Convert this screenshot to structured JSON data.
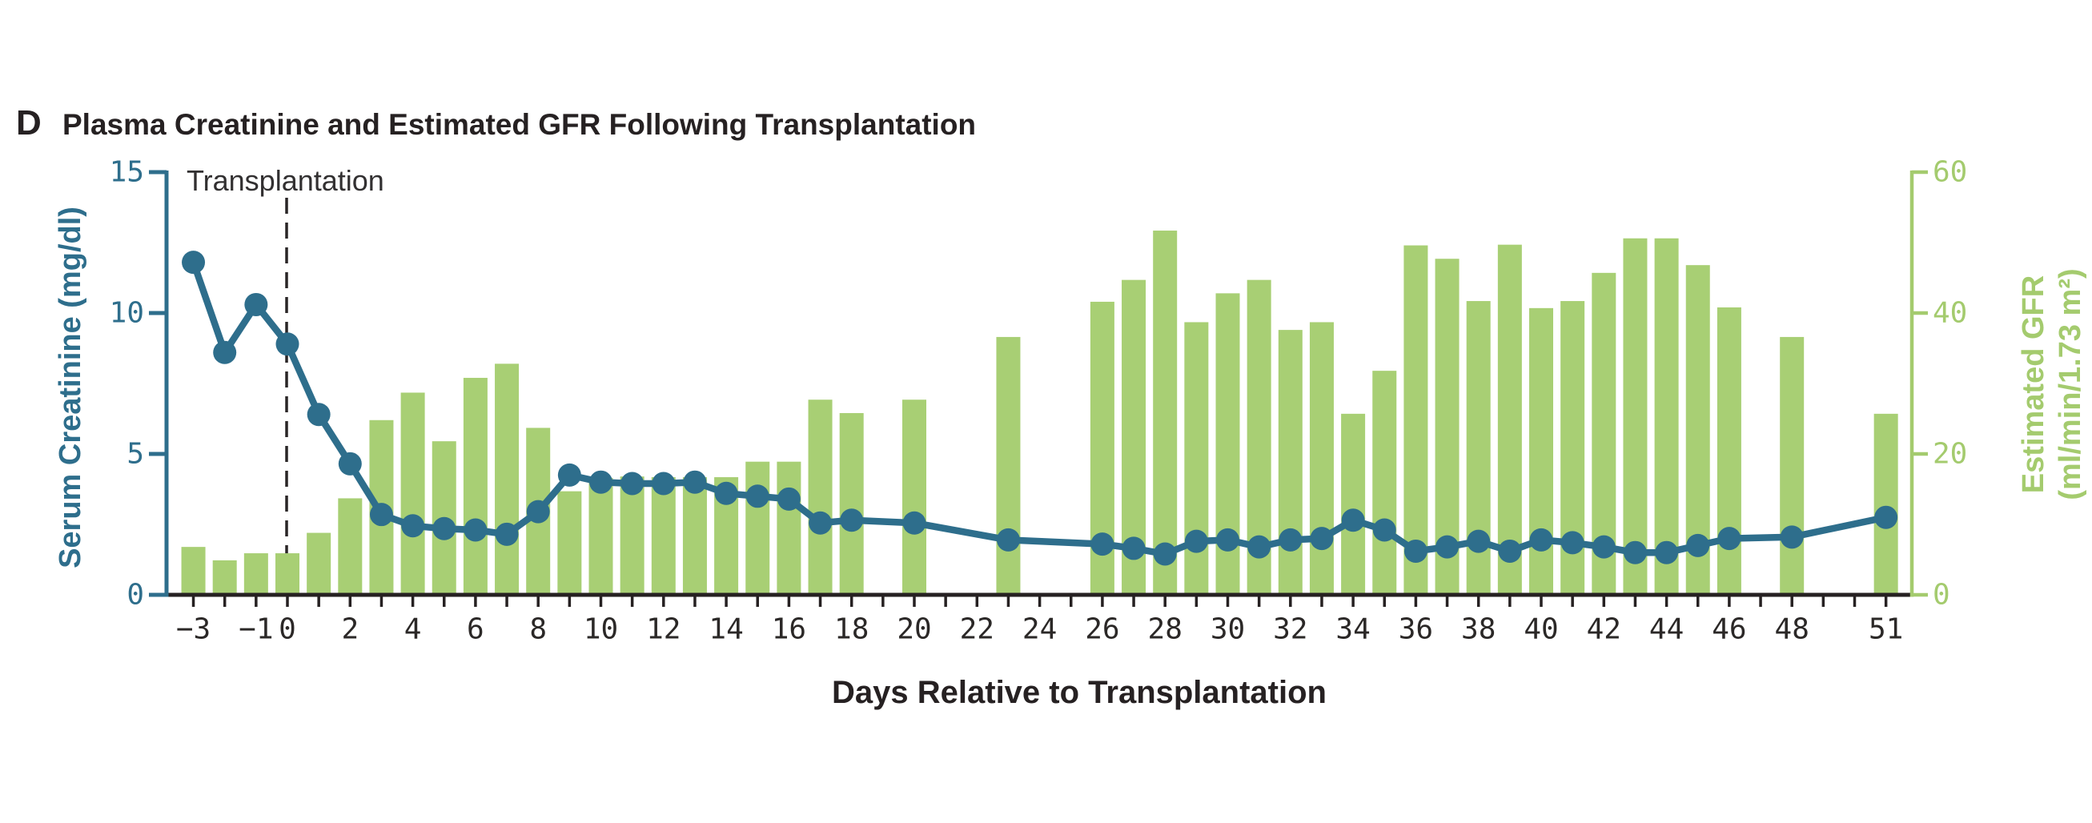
{
  "panel": {
    "label": "D",
    "title": "Plasma Creatinine and Estimated GFR Following Transplantation"
  },
  "annotation": {
    "transplantation_label": "Transplantation"
  },
  "chart_data": {
    "type": "combo-bar-line",
    "title": "Plasma Creatinine and Estimated GFR Following Transplantation",
    "x_axis": {
      "title": "Days Relative to Transplantation",
      "tick_label_values": [
        -3,
        -1,
        0,
        2,
        4,
        6,
        8,
        10,
        12,
        14,
        16,
        18,
        20,
        22,
        24,
        26,
        28,
        30,
        32,
        34,
        36,
        38,
        40,
        42,
        44,
        46,
        48,
        51
      ],
      "tick_labels": [
        "−3",
        "−1",
        "0",
        "2",
        "4",
        "6",
        "8",
        "10",
        "12",
        "14",
        "16",
        "18",
        "20",
        "22",
        "24",
        "26",
        "28",
        "30",
        "32",
        "34",
        "36",
        "38",
        "40",
        "42",
        "44",
        "46",
        "48",
        "51"
      ],
      "minor_tick_every_day": true,
      "range": [
        -3,
        51
      ]
    },
    "left_axis": {
      "title": "Serum Creatinine (mg/dl)",
      "ticks": [
        0,
        5,
        10,
        15
      ],
      "range": [
        0,
        15
      ],
      "color": "#2e6e8c"
    },
    "right_axis": {
      "title_line1": "Estimated GFR",
      "title_line2": "(ml/min/1.73 m²)",
      "ticks": [
        0,
        20,
        40,
        60
      ],
      "range": [
        0,
        60
      ],
      "color": "#a4cb6e"
    },
    "event_line": {
      "day": 0,
      "label": "Transplantation",
      "style": "dashed"
    },
    "series": [
      {
        "name": "Estimated GFR",
        "type": "bar",
        "axis": "right",
        "color": "#a8cf74",
        "points": [
          [
            -3,
            6.8
          ],
          [
            -2,
            4.9
          ],
          [
            -1,
            5.9
          ],
          [
            0,
            5.9
          ],
          [
            1,
            8.8
          ],
          [
            2,
            13.7
          ],
          [
            3,
            24.8
          ],
          [
            4,
            28.7
          ],
          [
            5,
            21.8
          ],
          [
            6,
            30.8
          ],
          [
            7,
            32.8
          ],
          [
            8,
            23.7
          ],
          [
            9,
            14.7
          ],
          [
            10,
            16.6
          ],
          [
            11,
            16.8
          ],
          [
            12,
            16.7
          ],
          [
            13,
            16.7
          ],
          [
            14,
            16.7
          ],
          [
            15,
            18.9
          ],
          [
            16,
            18.9
          ],
          [
            17,
            27.7
          ],
          [
            18,
            25.8
          ],
          [
            20,
            27.7
          ],
          [
            23,
            36.6
          ],
          [
            26,
            41.6
          ],
          [
            27,
            44.7
          ],
          [
            28,
            51.7
          ],
          [
            29,
            38.7
          ],
          [
            30,
            42.8
          ],
          [
            31,
            44.7
          ],
          [
            32,
            37.6
          ],
          [
            33,
            38.7
          ],
          [
            34,
            25.7
          ],
          [
            35,
            31.8
          ],
          [
            36,
            49.6
          ],
          [
            37,
            47.7
          ],
          [
            38,
            41.7
          ],
          [
            39,
            49.7
          ],
          [
            40,
            40.7
          ],
          [
            41,
            41.7
          ],
          [
            42,
            45.7
          ],
          [
            43,
            50.6
          ],
          [
            44,
            50.6
          ],
          [
            45,
            46.8
          ],
          [
            46,
            40.8
          ],
          [
            48,
            36.6
          ],
          [
            51,
            25.7
          ]
        ]
      },
      {
        "name": "Serum Creatinine",
        "type": "line",
        "axis": "left",
        "color": "#2e6e8c",
        "points": [
          [
            -3,
            11.8
          ],
          [
            -2,
            8.6
          ],
          [
            -1,
            10.3
          ],
          [
            0,
            8.9
          ],
          [
            1,
            6.4
          ],
          [
            2,
            4.65
          ],
          [
            3,
            2.85
          ],
          [
            4,
            2.45
          ],
          [
            5,
            2.35
          ],
          [
            6,
            2.3
          ],
          [
            7,
            2.15
          ],
          [
            8,
            2.95
          ],
          [
            9,
            4.25
          ],
          [
            10,
            4.0
          ],
          [
            11,
            3.95
          ],
          [
            12,
            3.95
          ],
          [
            13,
            4.0
          ],
          [
            14,
            3.6
          ],
          [
            15,
            3.5
          ],
          [
            16,
            3.4
          ],
          [
            17,
            2.55
          ],
          [
            18,
            2.65
          ],
          [
            20,
            2.55
          ],
          [
            23,
            1.95
          ],
          [
            26,
            1.8
          ],
          [
            27,
            1.65
          ],
          [
            28,
            1.45
          ],
          [
            29,
            1.9
          ],
          [
            30,
            1.95
          ],
          [
            31,
            1.7
          ],
          [
            32,
            1.95
          ],
          [
            33,
            2.0
          ],
          [
            34,
            2.65
          ],
          [
            35,
            2.3
          ],
          [
            36,
            1.55
          ],
          [
            37,
            1.7
          ],
          [
            38,
            1.9
          ],
          [
            39,
            1.55
          ],
          [
            40,
            1.95
          ],
          [
            41,
            1.85
          ],
          [
            42,
            1.7
          ],
          [
            43,
            1.5
          ],
          [
            44,
            1.5
          ],
          [
            45,
            1.75
          ],
          [
            46,
            2.0
          ],
          [
            48,
            2.05
          ],
          [
            51,
            2.75
          ]
        ]
      }
    ]
  },
  "colors": {
    "teal": "#2e6e8c",
    "bar_green": "#a8cf74",
    "axis_green": "#a4cb6e",
    "ink": "#262122"
  }
}
